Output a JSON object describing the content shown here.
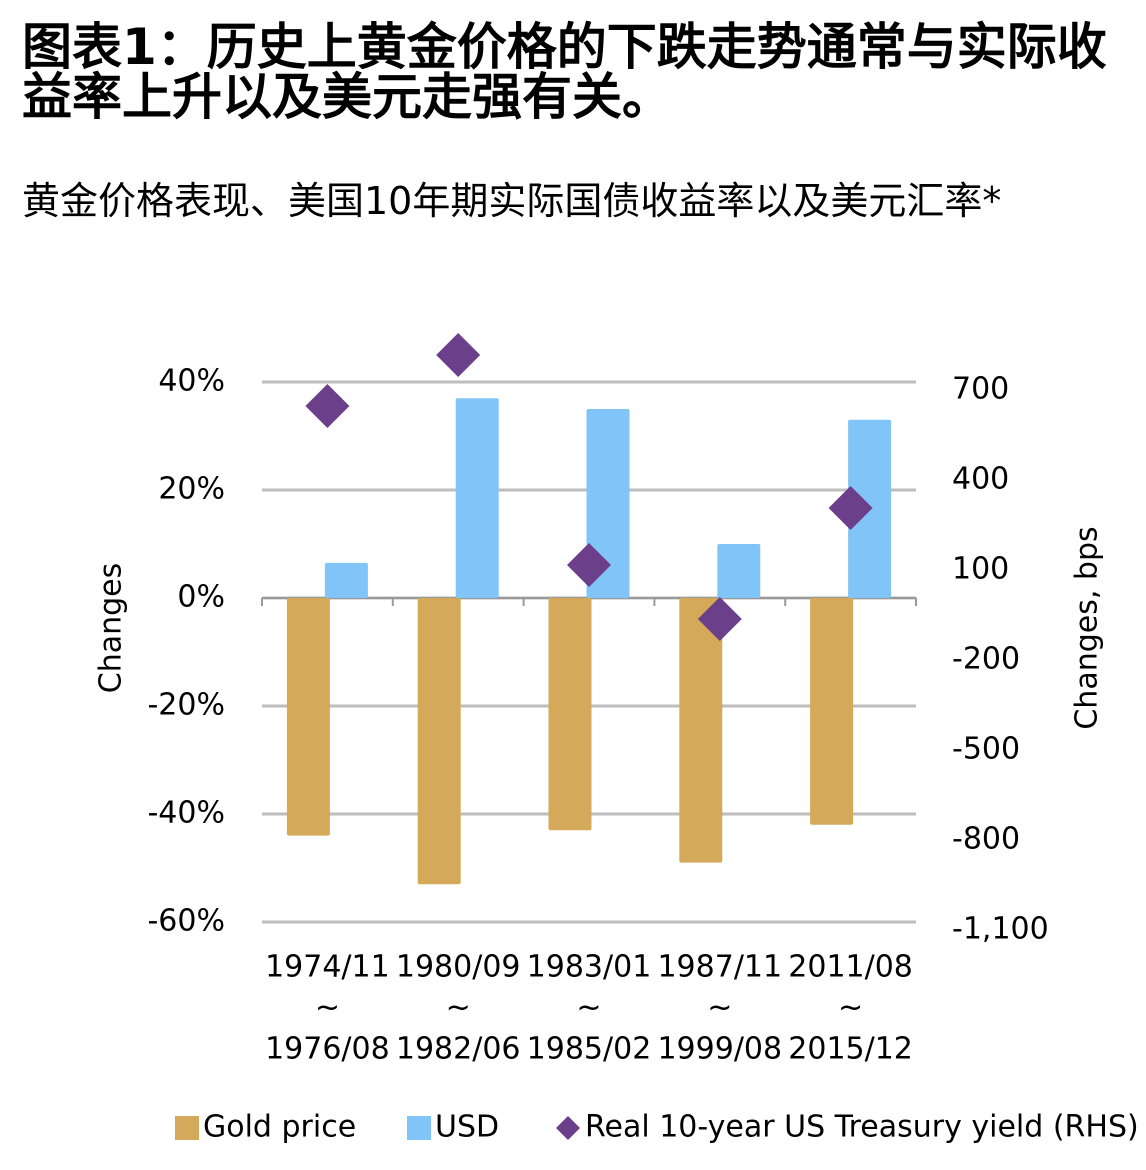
{
  "chart_data": {
    "type": "bar",
    "title": "图表1：历史上黄金价格的下跌走势通常与实际收益率上升以及美元走强有关。",
    "subtitle": "黄金价格表现、美国10年期实际国债收益率以及美元汇率*",
    "categories": [
      [
        "1974/11",
        "~",
        "1976/08"
      ],
      [
        "1980/09",
        "~",
        "1982/06"
      ],
      [
        "1983/01",
        "~",
        "1985/02"
      ],
      [
        "1987/11",
        "~",
        "1999/08"
      ],
      [
        "2011/08",
        "~",
        "2015/12"
      ]
    ],
    "series": [
      {
        "name": "Gold price",
        "color": "#d4aa5a",
        "values": [
          -44,
          -53,
          -43,
          -49,
          -42
        ]
      },
      {
        "name": "USD",
        "color": "#80c4f8",
        "values": [
          6.5,
          37,
          35,
          10,
          33
        ]
      },
      {
        "name": "Real 10-year US Treasury yield (RHS)",
        "color": "#6b3f8a",
        "axis": "y2",
        "marker": "diamond",
        "values": [
          620,
          790,
          90,
          -90,
          280
        ]
      }
    ],
    "ylabel": "Changes",
    "y2label": "Changes, bps",
    "ylim": [
      -60,
      40
    ],
    "yticks": [
      {
        "value": 40,
        "label": "40%"
      },
      {
        "value": 20,
        "label": "20%"
      },
      {
        "value": 0,
        "label": "0%"
      },
      {
        "value": -20,
        "label": "-20%"
      },
      {
        "value": -40,
        "label": "-40%"
      },
      {
        "value": -60,
        "label": "-60%"
      }
    ],
    "y2lim": [
      -1100,
      700
    ],
    "y2ticks": [
      700,
      400,
      100,
      -200,
      -500,
      -800,
      {
        "value": -1100,
        "label": "-1,100"
      }
    ],
    "grid": true,
    "legend": "bottom"
  }
}
